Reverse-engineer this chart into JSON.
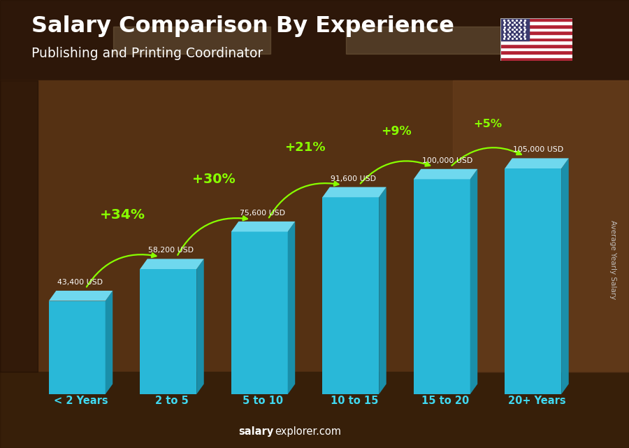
{
  "title": "Salary Comparison By Experience",
  "subtitle": "Publishing and Printing Coordinator",
  "categories": [
    "< 2 Years",
    "2 to 5",
    "5 to 10",
    "10 to 15",
    "15 to 20",
    "20+ Years"
  ],
  "values": [
    43400,
    58200,
    75600,
    91600,
    100000,
    105000
  ],
  "salary_labels": [
    "43,400 USD",
    "58,200 USD",
    "75,600 USD",
    "91,600 USD",
    "100,000 USD",
    "105,000 USD"
  ],
  "pct_labels": [
    "+34%",
    "+30%",
    "+21%",
    "+9%",
    "+5%"
  ],
  "bar_face_color": "#29B8D8",
  "bar_side_color": "#1A8FAA",
  "bar_top_color": "#6FD8EE",
  "bg_top_color": "#4a2e14",
  "bg_mid_color": "#6b3d1a",
  "bg_floor_color": "#3d2410",
  "ylabel": "Average Yearly Salary",
  "watermark_salary": "salary",
  "watermark_rest": "explorer.com",
  "title_color": "#FFFFFF",
  "subtitle_color": "#FFFFFF",
  "salary_label_color": "#FFFFFF",
  "pct_color": "#88FF00",
  "cat_label_color": "#40D8F0",
  "watermark_bold_color": "#FFFFFF",
  "watermark_color": "#FFFFFF",
  "ylabel_color": "#CCCCCC",
  "y_max": 125000,
  "bar_width": 0.62,
  "side_ox_ratio": 0.13,
  "side_oy_ratio": 0.038,
  "n_bars": 6
}
